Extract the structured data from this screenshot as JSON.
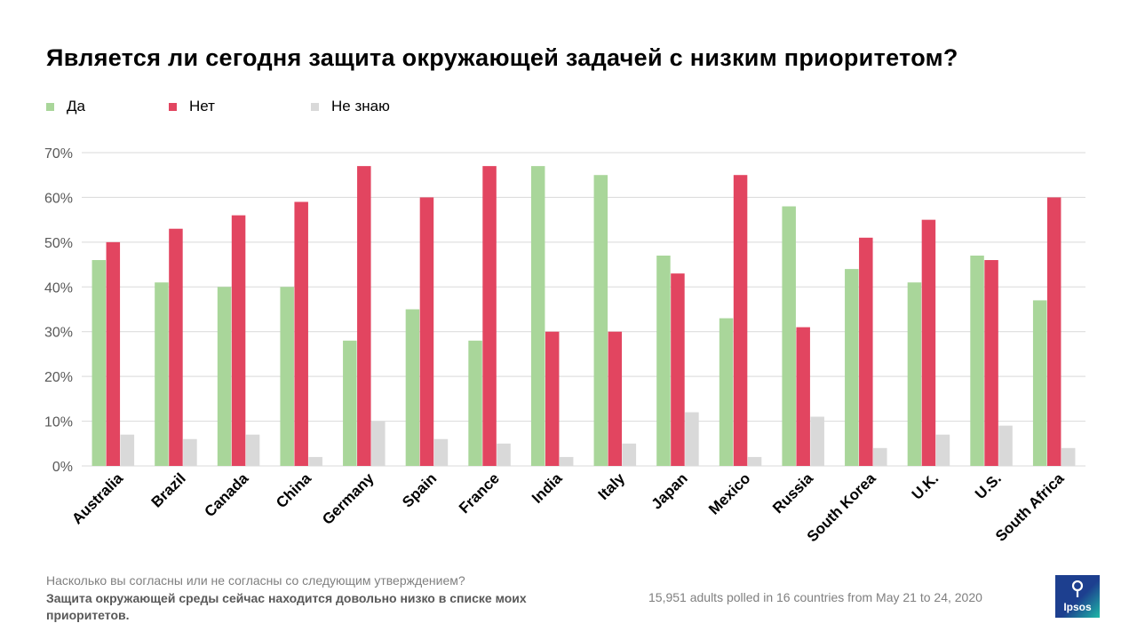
{
  "title": "Является ли сегодня защита окружающей задачей с низким приоритетом?",
  "colors": {
    "yes": "#a9d69a",
    "no": "#e24560",
    "dont_know": "#d9d9d9",
    "grid": "#d9d9d9",
    "axis_text": "#595959"
  },
  "chart_data": {
    "type": "bar",
    "title": "Является ли сегодня защита окружающей задачей с низким приоритетом?",
    "categories": [
      "Australia",
      "Brazil",
      "Canada",
      "China",
      "Germany",
      "Spain",
      "France",
      "India",
      "Italy",
      "Japan",
      "Mexico",
      "Russia",
      "South Korea",
      "U.K.",
      "U.S.",
      "South Africa"
    ],
    "series": [
      {
        "name": "Да",
        "color": "#a9d69a",
        "values": [
          46,
          41,
          40,
          40,
          28,
          35,
          28,
          67,
          65,
          47,
          33,
          58,
          44,
          41,
          47,
          37
        ]
      },
      {
        "name": "Нет",
        "color": "#e24560",
        "values": [
          50,
          53,
          56,
          59,
          67,
          60,
          67,
          30,
          30,
          43,
          65,
          31,
          51,
          55,
          46,
          60
        ]
      },
      {
        "name": "Не знаю",
        "color": "#d9d9d9",
        "values": [
          7,
          6,
          7,
          2,
          10,
          6,
          5,
          2,
          5,
          12,
          2,
          11,
          4,
          7,
          9,
          4
        ]
      }
    ],
    "yticks": [
      "0%",
      "10%",
      "20%",
      "30%",
      "40%",
      "50%",
      "60%",
      "70%"
    ],
    "ylim": [
      0,
      70
    ],
    "grid": true,
    "legend_position": "top-left",
    "xlabel": "",
    "ylabel": ""
  },
  "footer": {
    "question": "Насколько вы согласны или  не согласны со следующим  утверждением?",
    "statement": "Защита окружающей среды сейчас находится довольно низко в списке моих приоритетов.",
    "note": "15,951 adults polled in 16 countries from May 21 to 24, 2020"
  },
  "logo": {
    "text": "Ipsos"
  }
}
